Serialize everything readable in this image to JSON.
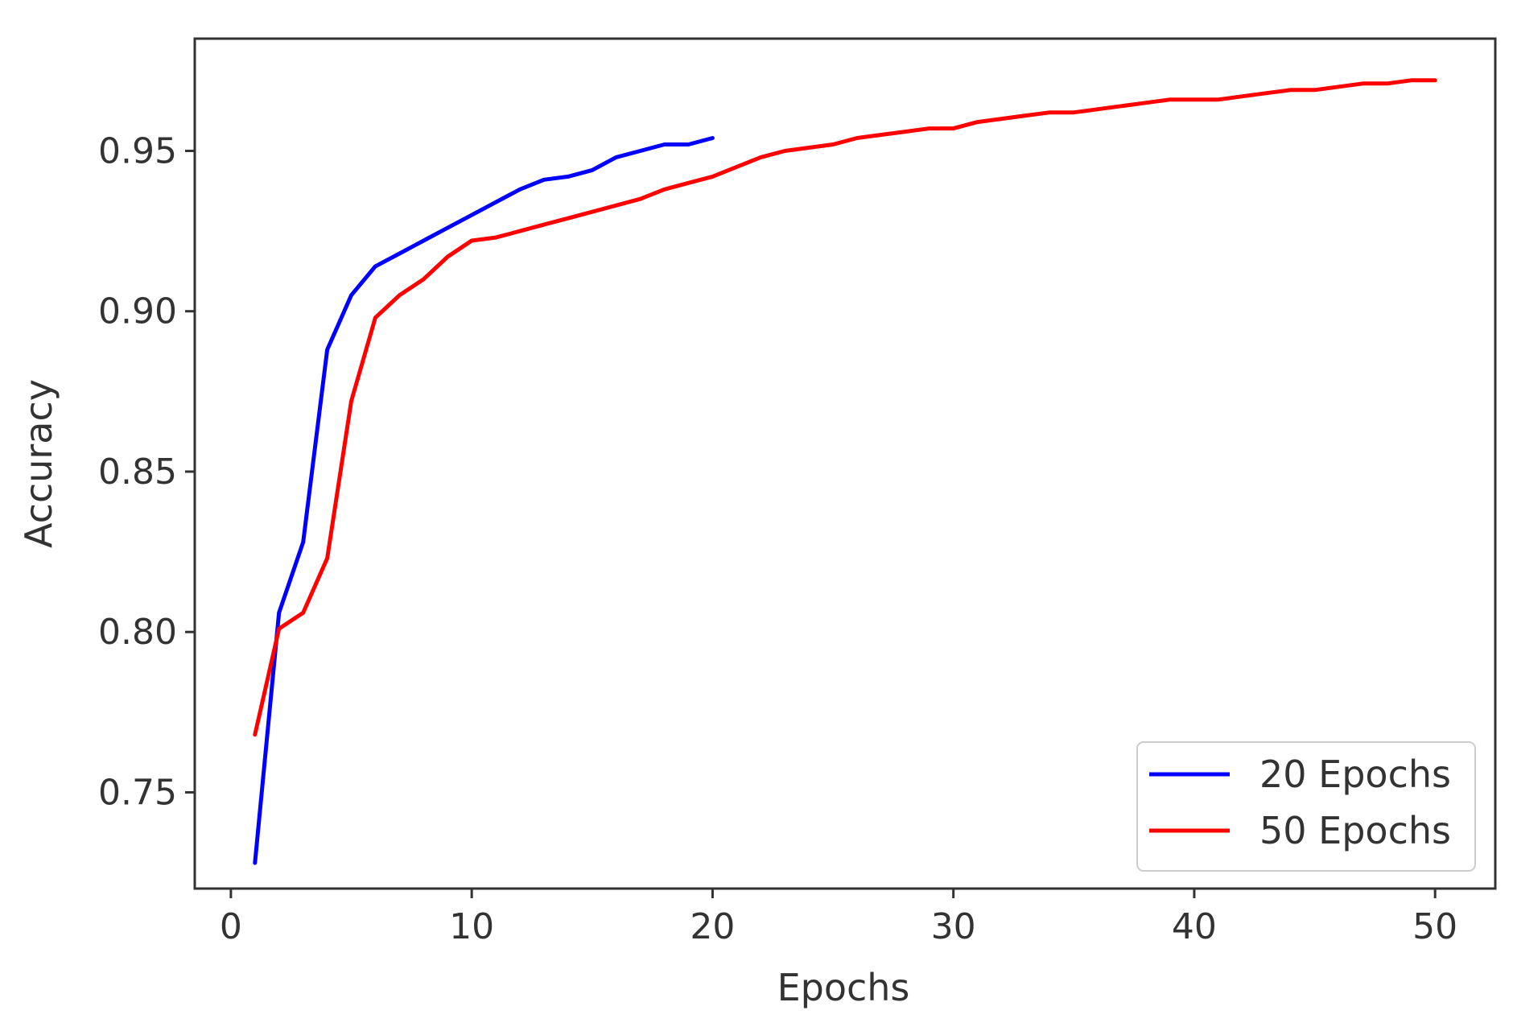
{
  "chart_data": {
    "type": "line",
    "title": "",
    "xlabel": "Epochs",
    "ylabel": "Accuracy",
    "xlim": [
      -1.5,
      52.5
    ],
    "ylim": [
      0.72,
      0.985
    ],
    "xticks": [
      0,
      10,
      20,
      30,
      40,
      50
    ],
    "xtick_labels": [
      "0",
      "10",
      "20",
      "30",
      "40",
      "50"
    ],
    "yticks": [
      0.75,
      0.8,
      0.85,
      0.9,
      0.95
    ],
    "ytick_labels": [
      "0.75",
      "0.80",
      "0.85",
      "0.90",
      "0.95"
    ],
    "grid": false,
    "legend_position": "lower-right",
    "series": [
      {
        "name": "20 Epochs",
        "color": "#0000ff",
        "x": [
          1,
          2,
          3,
          4,
          5,
          6,
          7,
          8,
          9,
          10,
          11,
          12,
          13,
          14,
          15,
          16,
          17,
          18,
          19,
          20
        ],
        "y": [
          0.728,
          0.806,
          0.828,
          0.888,
          0.905,
          0.914,
          0.918,
          0.922,
          0.926,
          0.93,
          0.934,
          0.938,
          0.941,
          0.942,
          0.944,
          0.948,
          0.95,
          0.952,
          0.952,
          0.954
        ]
      },
      {
        "name": "50 Epochs",
        "color": "#ff0000",
        "x": [
          1,
          2,
          3,
          4,
          5,
          6,
          7,
          8,
          9,
          10,
          11,
          12,
          13,
          14,
          15,
          16,
          17,
          18,
          19,
          20,
          21,
          22,
          23,
          24,
          25,
          26,
          27,
          28,
          29,
          30,
          31,
          32,
          33,
          34,
          35,
          36,
          37,
          38,
          39,
          40,
          41,
          42,
          43,
          44,
          45,
          46,
          47,
          48,
          49,
          50
        ],
        "y": [
          0.768,
          0.801,
          0.806,
          0.823,
          0.872,
          0.898,
          0.905,
          0.91,
          0.917,
          0.922,
          0.923,
          0.925,
          0.927,
          0.929,
          0.931,
          0.933,
          0.935,
          0.938,
          0.94,
          0.942,
          0.945,
          0.948,
          0.95,
          0.951,
          0.952,
          0.954,
          0.955,
          0.956,
          0.957,
          0.957,
          0.959,
          0.96,
          0.961,
          0.962,
          0.962,
          0.963,
          0.964,
          0.965,
          0.966,
          0.966,
          0.966,
          0.967,
          0.968,
          0.969,
          0.969,
          0.97,
          0.971,
          0.971,
          0.972,
          0.972
        ]
      }
    ]
  }
}
